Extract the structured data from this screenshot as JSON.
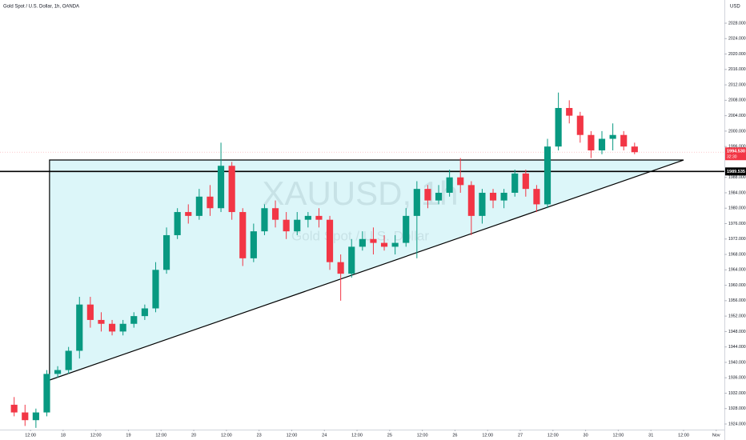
{
  "chart_data": {
    "type": "candlestick",
    "title": "Gold Spot / U.S. Dollar, 1h, OANDA",
    "axis_unit": "USD",
    "watermark": "XAUUSD, 1h",
    "watermark_sub": "Gold Spot / U.S. Dollar",
    "up_color": "#089981",
    "down_color": "#f23645",
    "grid": false,
    "xlim": [
      -11.2,
      255
    ],
    "ylim": [
      1922.55,
      2034.02
    ],
    "xticks": [
      {
        "value": 0,
        "label": "12:00"
      },
      {
        "value": 12,
        "label": "18"
      },
      {
        "value": 24,
        "label": "12:00"
      },
      {
        "value": 36,
        "label": "19"
      },
      {
        "value": 48,
        "label": "12:00"
      },
      {
        "value": 60,
        "label": "20"
      },
      {
        "value": 72,
        "label": "12:00"
      },
      {
        "value": 84,
        "label": "23"
      },
      {
        "value": 96,
        "label": "12:00"
      },
      {
        "value": 108,
        "label": "24"
      },
      {
        "value": 120,
        "label": "12:00"
      },
      {
        "value": 132,
        "label": "25"
      },
      {
        "value": 144,
        "label": "12:00"
      },
      {
        "value": 156,
        "label": "26"
      },
      {
        "value": 168,
        "label": "12:00"
      },
      {
        "value": 180,
        "label": "27"
      },
      {
        "value": 192,
        "label": "12:00"
      },
      {
        "value": 204,
        "label": "30"
      },
      {
        "value": 216,
        "label": "12:00"
      },
      {
        "value": 228,
        "label": "31"
      },
      {
        "value": 240,
        "label": "12:00"
      },
      {
        "value": 252,
        "label": "Nov"
      }
    ],
    "yticks": [
      {
        "value": 1924,
        "label": "1924.000"
      },
      {
        "value": 1928,
        "label": "1928.000"
      },
      {
        "value": 1932,
        "label": "1932.000"
      },
      {
        "value": 1936,
        "label": "1936.000"
      },
      {
        "value": 1940,
        "label": "1940.000"
      },
      {
        "value": 1944,
        "label": "1944.000"
      },
      {
        "value": 1948,
        "label": "1948.000"
      },
      {
        "value": 1952,
        "label": "1952.000"
      },
      {
        "value": 1956,
        "label": "1956.000"
      },
      {
        "value": 1960,
        "label": "1960.000"
      },
      {
        "value": 1964,
        "label": "1964.000"
      },
      {
        "value": 1968,
        "label": "1968.000"
      },
      {
        "value": 1972,
        "label": "1972.000"
      },
      {
        "value": 1976,
        "label": "1976.000"
      },
      {
        "value": 1980,
        "label": "1980.000"
      },
      {
        "value": 1984,
        "label": "1984.000"
      },
      {
        "value": 1988,
        "label": "1988.000"
      },
      {
        "value": 1996,
        "label": "1996.000"
      },
      {
        "value": 2000,
        "label": "2000.000"
      },
      {
        "value": 2004,
        "label": "2004.000"
      },
      {
        "value": 2008,
        "label": "2008.000"
      },
      {
        "value": 2012,
        "label": "2012.000"
      },
      {
        "value": 2016,
        "label": "2016.000"
      },
      {
        "value": 2020,
        "label": "2020.000"
      },
      {
        "value": 2024,
        "label": "2024.000"
      },
      {
        "value": 2028,
        "label": "2028.000"
      }
    ],
    "candles": {
      "x": [
        -6,
        -2,
        2,
        6,
        10,
        14,
        18,
        22,
        26,
        30,
        34,
        38,
        42,
        46,
        50,
        54,
        58,
        62,
        66,
        70,
        74,
        78,
        82,
        86,
        90,
        94,
        98,
        102,
        106,
        110,
        114,
        118,
        122,
        126,
        130,
        134,
        138,
        142,
        146,
        150,
        154,
        158,
        162,
        166,
        170,
        174,
        178,
        182,
        186,
        190,
        194,
        198,
        202,
        206,
        210,
        214,
        218,
        222
      ],
      "open": [
        1929,
        1927,
        1925,
        1927,
        1937,
        1938,
        1943,
        1955,
        1951,
        1950,
        1948,
        1950,
        1952,
        1954,
        1964,
        1973,
        1979,
        1978,
        1983,
        1980,
        1991,
        1979,
        1967,
        1974,
        1980,
        1977,
        1974,
        1977,
        1978,
        1977,
        1966,
        1963,
        1970,
        1972,
        1971,
        1970,
        1971,
        1978,
        1985,
        1982,
        1984,
        1988,
        1986,
        1978,
        1984,
        1982,
        1984,
        1989,
        1985,
        1981,
        1996,
        2006,
        2004,
        1999,
        1995,
        1998,
        1999,
        1996
      ],
      "high": [
        1931,
        1929,
        1928,
        1938,
        1939,
        1944,
        1957,
        1957,
        1953,
        1951,
        1951,
        1953,
        1955,
        1966,
        1975,
        1980,
        1981,
        1985,
        1986,
        1997,
        1992,
        1980,
        1976,
        1981,
        1982,
        1979,
        1979,
        1979,
        1980,
        1978,
        1968,
        1972,
        1974,
        1975,
        1973,
        1973,
        1980,
        1987,
        1986,
        1986,
        1990,
        1993,
        1987,
        1985,
        1985,
        1985,
        1990,
        1990,
        1986,
        1998,
        2010,
        2008,
        2005,
        2000,
        2000,
        2002,
        2000,
        1997
      ],
      "low": [
        1926,
        1923.5,
        1923,
        1926,
        1936,
        1937,
        1941,
        1949,
        1948,
        1947,
        1947,
        1949,
        1951,
        1953,
        1963,
        1972,
        1976,
        1977,
        1978,
        1979,
        1977,
        1965,
        1966,
        1973,
        1975,
        1972,
        1973,
        1975,
        1975,
        1964,
        1956,
        1962,
        1969,
        1968,
        1969,
        1968,
        1970,
        1967,
        1980,
        1981,
        1983,
        1984,
        1973,
        1976,
        1980,
        1980,
        1983,
        1983,
        1979,
        1980,
        1995,
        2002,
        1997,
        1993,
        1994,
        1995,
        1995,
        1994
      ],
      "close": [
        1927,
        1925,
        1927,
        1937,
        1938,
        1943,
        1955,
        1951,
        1950,
        1948,
        1950,
        1952,
        1954,
        1964,
        1973,
        1979,
        1978,
        1983,
        1980,
        1991,
        1979,
        1967,
        1974,
        1980,
        1977,
        1974,
        1977,
        1978,
        1977,
        1966,
        1963,
        1970,
        1972,
        1971,
        1970,
        1971,
        1978,
        1985,
        1982,
        1984,
        1988,
        1986,
        1978,
        1984,
        1982,
        1984,
        1989,
        1985,
        1981,
        1996,
        2006,
        2004,
        1999,
        1995,
        1998,
        1999,
        1996,
        1994.53
      ]
    },
    "horizontal_line": {
      "value": 1989.535,
      "label": "1989.535"
    },
    "last_price": {
      "value": 1994.53,
      "label": "1994.530"
    },
    "countdown": "32:30",
    "triangle": {
      "x": [
        7,
        240,
        7
      ],
      "y": [
        1992.5,
        1992.5,
        1935.4
      ]
    }
  }
}
